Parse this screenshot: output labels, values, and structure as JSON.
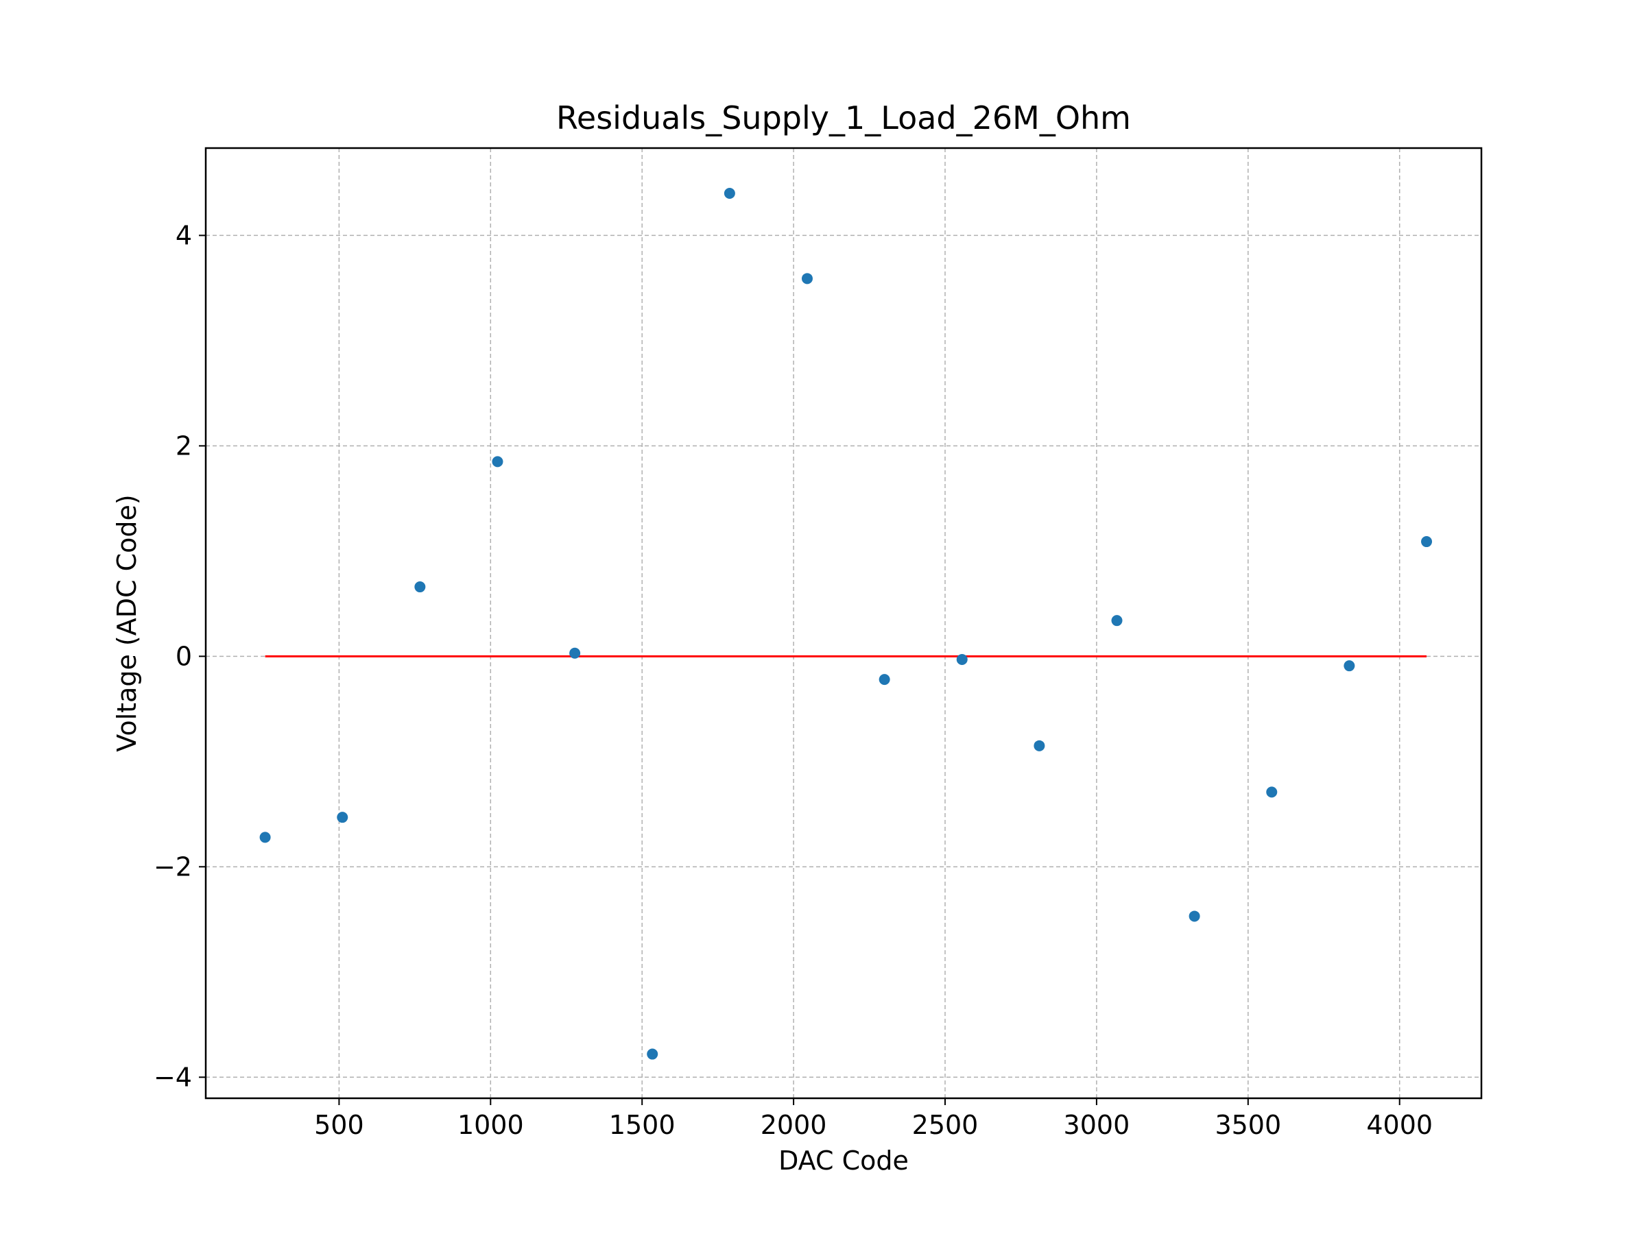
{
  "chart_data": {
    "type": "scatter",
    "title": "Residuals_Supply_1_Load_26M_Ohm",
    "xlabel": "DAC Code",
    "ylabel": "Voltage (ADC Code)",
    "xlim": [
      60,
      4270
    ],
    "ylim": [
      -4.2,
      4.83
    ],
    "xticks": [
      500,
      1000,
      1500,
      2000,
      2500,
      3000,
      3500,
      4000
    ],
    "xtick_labels": [
      "500",
      "1000",
      "1500",
      "2000",
      "2500",
      "3000",
      "3500",
      "4000"
    ],
    "yticks": [
      -4,
      -2,
      0,
      2,
      4
    ],
    "ytick_labels": [
      "−4",
      "−2",
      "0",
      "2",
      "4"
    ],
    "grid": true,
    "series": [
      {
        "name": "residuals",
        "type": "scatter",
        "color": "#1f77b4",
        "points": [
          {
            "x": 256,
            "y": -1.72
          },
          {
            "x": 511,
            "y": -1.53
          },
          {
            "x": 767,
            "y": 0.66
          },
          {
            "x": 1023,
            "y": 1.85
          },
          {
            "x": 1278,
            "y": 0.03
          },
          {
            "x": 1534,
            "y": -3.78
          },
          {
            "x": 1789,
            "y": 4.4
          },
          {
            "x": 2045,
            "y": 3.59
          },
          {
            "x": 2300,
            "y": -0.22
          },
          {
            "x": 2556,
            "y": -0.03
          },
          {
            "x": 2811,
            "y": -0.85
          },
          {
            "x": 3067,
            "y": 0.34
          },
          {
            "x": 3323,
            "y": -2.47
          },
          {
            "x": 3578,
            "y": -1.29
          },
          {
            "x": 3834,
            "y": -0.09
          },
          {
            "x": 4089,
            "y": 1.09
          }
        ]
      },
      {
        "name": "zero-line",
        "type": "line",
        "color": "#ff0000",
        "points": [
          {
            "x": 256,
            "y": 0
          },
          {
            "x": 4089,
            "y": 0
          }
        ]
      }
    ]
  }
}
